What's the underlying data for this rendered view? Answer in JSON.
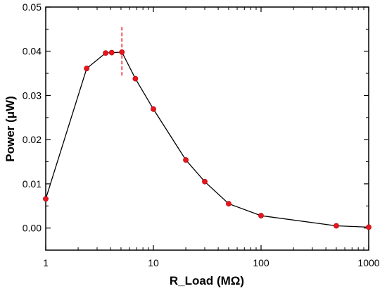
{
  "chart_data": {
    "type": "line",
    "xlabel": "R_Load (MΩ)",
    "ylabel": "Power (μW)",
    "x_scale": "log",
    "xlim": [
      1,
      1000
    ],
    "ylim": [
      -0.005,
      0.05
    ],
    "x_ticks": [
      1,
      10,
      100,
      1000
    ],
    "x_tick_labels": [
      "1",
      "10",
      "100",
      "1000"
    ],
    "y_ticks": [
      0.0,
      0.01,
      0.02,
      0.03,
      0.04,
      0.05
    ],
    "y_tick_labels": [
      "0.00",
      "0.01",
      "0.02",
      "0.03",
      "0.04",
      "0.05"
    ],
    "grid": false,
    "series": [
      {
        "x": [
          1,
          2.4,
          3.6,
          4.1,
          5.1,
          6.8,
          10,
          20,
          30,
          50,
          100,
          500,
          1000
        ],
        "y": [
          0.0066,
          0.0361,
          0.0396,
          0.0397,
          0.0398,
          0.0338,
          0.0269,
          0.0154,
          0.0105,
          0.0055,
          0.0028,
          0.0005,
          0.0002
        ],
        "line_color": "#000000",
        "marker_color": "#e8141c"
      }
    ],
    "annotation": {
      "type": "vertical-dashed-line",
      "x": 5.1,
      "y_range": [
        0.0345,
        0.0455
      ],
      "color": "#e8141c"
    }
  }
}
